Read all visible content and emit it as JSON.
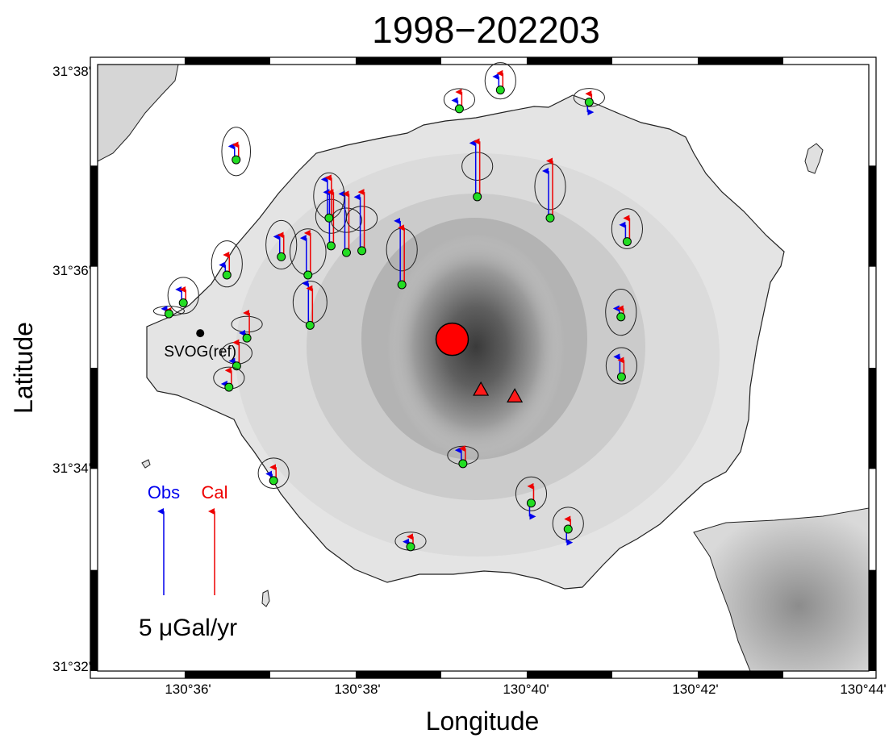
{
  "title": "1998−202203",
  "axes": {
    "xlabel": "Longitude",
    "ylabel": "Latitude",
    "x_ticks": [
      "130°36'",
      "130°38'",
      "130°40'",
      "130°42'",
      "130°44'"
    ],
    "y_ticks": [
      "31°38'",
      "31°36'",
      "31°34'",
      "31°32'"
    ]
  },
  "reference_station": {
    "label": "SVOG(ref)",
    "lon": 130.603,
    "lat": 31.589
  },
  "legend": {
    "obs_label": "Obs",
    "cal_label": "Cal",
    "scale_label": "5 μGal/yr",
    "scale_value": 5,
    "obs_color": "#0000ee",
    "cal_color": "#ee0000"
  },
  "colors": {
    "station": "#22dd22",
    "source": "#ff0000",
    "vent": "#ff1a1a",
    "land": "#e6e6e6",
    "volcano_peak": "#444444"
  },
  "pressure_source_label": "",
  "map_extent": {
    "lon": [
      130.583,
      130.7333
    ],
    "lat": [
      31.5333,
      31.6333
    ]
  },
  "vents": [
    {
      "lon": 130.6577,
      "lat": 31.5797
    },
    {
      "lon": 130.6643,
      "lat": 31.5786
    }
  ],
  "source": {
    "lon": 130.6521,
    "lat": 31.588
  },
  "stations": [
    {
      "lon": 130.5969,
      "lat": 31.5922,
      "obs": 0.3,
      "cal": 0.2,
      "errx": 0.003,
      "erry": 0.0008
    },
    {
      "lon": 130.5997,
      "lat": 31.594,
      "obs": 0.8,
      "cal": 0.8,
      "errx": 0.003,
      "erry": 0.003
    },
    {
      "lon": 130.6082,
      "lat": 31.5986,
      "obs": 0.6,
      "cal": 1.2,
      "errx": 0.003,
      "erry": 0.0038
    },
    {
      "lon": 130.6188,
      "lat": 31.6016,
      "obs": 1.2,
      "cal": 1.3,
      "errx": 0.003,
      "erry": 0.004
    },
    {
      "lon": 130.6244,
      "lat": 31.5903,
      "obs": 2.5,
      "cal": 2.2,
      "errx": 0.0033,
      "erry": 0.0035
    },
    {
      "lon": 130.624,
      "lat": 31.5986,
      "obs": 2.2,
      "cal": 2.5,
      "errx": 0.0035,
      "erry": 0.0038
    },
    {
      "lon": 130.6285,
      "lat": 31.6034,
      "obs": 3.2,
      "cal": 3.2,
      "errx": 0.003,
      "erry": 0.0028
    },
    {
      "lon": 130.6315,
      "lat": 31.6023,
      "obs": 3.5,
      "cal": 3.5,
      "errx": 0.003,
      "erry": 0.002
    },
    {
      "lon": 130.6345,
      "lat": 31.6026,
      "obs": 3.2,
      "cal": 3.5,
      "errx": 0.003,
      "erry": 0.002
    },
    {
      "lon": 130.6423,
      "lat": 31.597,
      "obs": 3.8,
      "cal": 3.4,
      "errx": 0.003,
      "erry": 0.0035
    },
    {
      "lon": 130.6121,
      "lat": 31.5882,
      "obs": 0.3,
      "cal": 1.5,
      "errx": 0.003,
      "erry": 0.0013
    },
    {
      "lon": 130.6101,
      "lat": 31.5836,
      "obs": 0.3,
      "cal": 1.4,
      "errx": 0.003,
      "erry": 0.0018
    },
    {
      "lon": 130.6086,
      "lat": 31.5801,
      "obs": 0.2,
      "cal": 1.0,
      "errx": 0.003,
      "erry": 0.0018
    },
    {
      "lon": 130.61,
      "lat": 31.6176,
      "obs": 0.8,
      "cal": 0.9,
      "errx": 0.0028,
      "erry": 0.004
    },
    {
      "lon": 130.6281,
      "lat": 31.608,
      "obs": 2.3,
      "cal": 2.4,
      "errx": 0.003,
      "erry": 0.0038
    },
    {
      "lon": 130.657,
      "lat": 31.6115,
      "obs": 3.2,
      "cal": 3.3,
      "errx": 0.003,
      "erry": 0.0023
    },
    {
      "lon": 130.6712,
      "lat": 31.608,
      "obs": 2.8,
      "cal": 3.4,
      "errx": 0.003,
      "erry": 0.0038
    },
    {
      "lon": 130.6535,
      "lat": 31.626,
      "obs": 0.5,
      "cal": 1.0,
      "errx": 0.003,
      "erry": 0.0018
    },
    {
      "lon": 130.6615,
      "lat": 31.6291,
      "obs": 0.8,
      "cal": 1.0,
      "errx": 0.003,
      "erry": 0.003
    },
    {
      "lon": 130.6788,
      "lat": 31.6271,
      "obs": -0.6,
      "cal": 0.5,
      "errx": 0.003,
      "erry": 0.0015
    },
    {
      "lon": 130.6862,
      "lat": 31.6041,
      "obs": 1.0,
      "cal": 1.4,
      "errx": 0.003,
      "erry": 0.0033
    },
    {
      "lon": 130.685,
      "lat": 31.5917,
      "obs": 0.5,
      "cal": 0.5,
      "errx": 0.003,
      "erry": 0.0038
    },
    {
      "lon": 130.6851,
      "lat": 31.5818,
      "obs": 1.2,
      "cal": 1.0,
      "errx": 0.003,
      "erry": 0.003
    },
    {
      "lon": 130.6542,
      "lat": 31.5675,
      "obs": 0.8,
      "cal": 0.9,
      "errx": 0.003,
      "erry": 0.0015
    },
    {
      "lon": 130.6675,
      "lat": 31.561,
      "obs": -0.8,
      "cal": 1.0,
      "errx": 0.003,
      "erry": 0.0028
    },
    {
      "lon": 130.6747,
      "lat": 31.5567,
      "obs": -0.8,
      "cal": 0.6,
      "errx": 0.003,
      "erry": 0.0027
    },
    {
      "lon": 130.644,
      "lat": 31.5538,
      "obs": 0.3,
      "cal": 0.6,
      "errx": 0.003,
      "erry": 0.0015
    },
    {
      "lon": 130.6173,
      "lat": 31.5647,
      "obs": 0.4,
      "cal": 0.8,
      "errx": 0.003,
      "erry": 0.0025
    }
  ]
}
